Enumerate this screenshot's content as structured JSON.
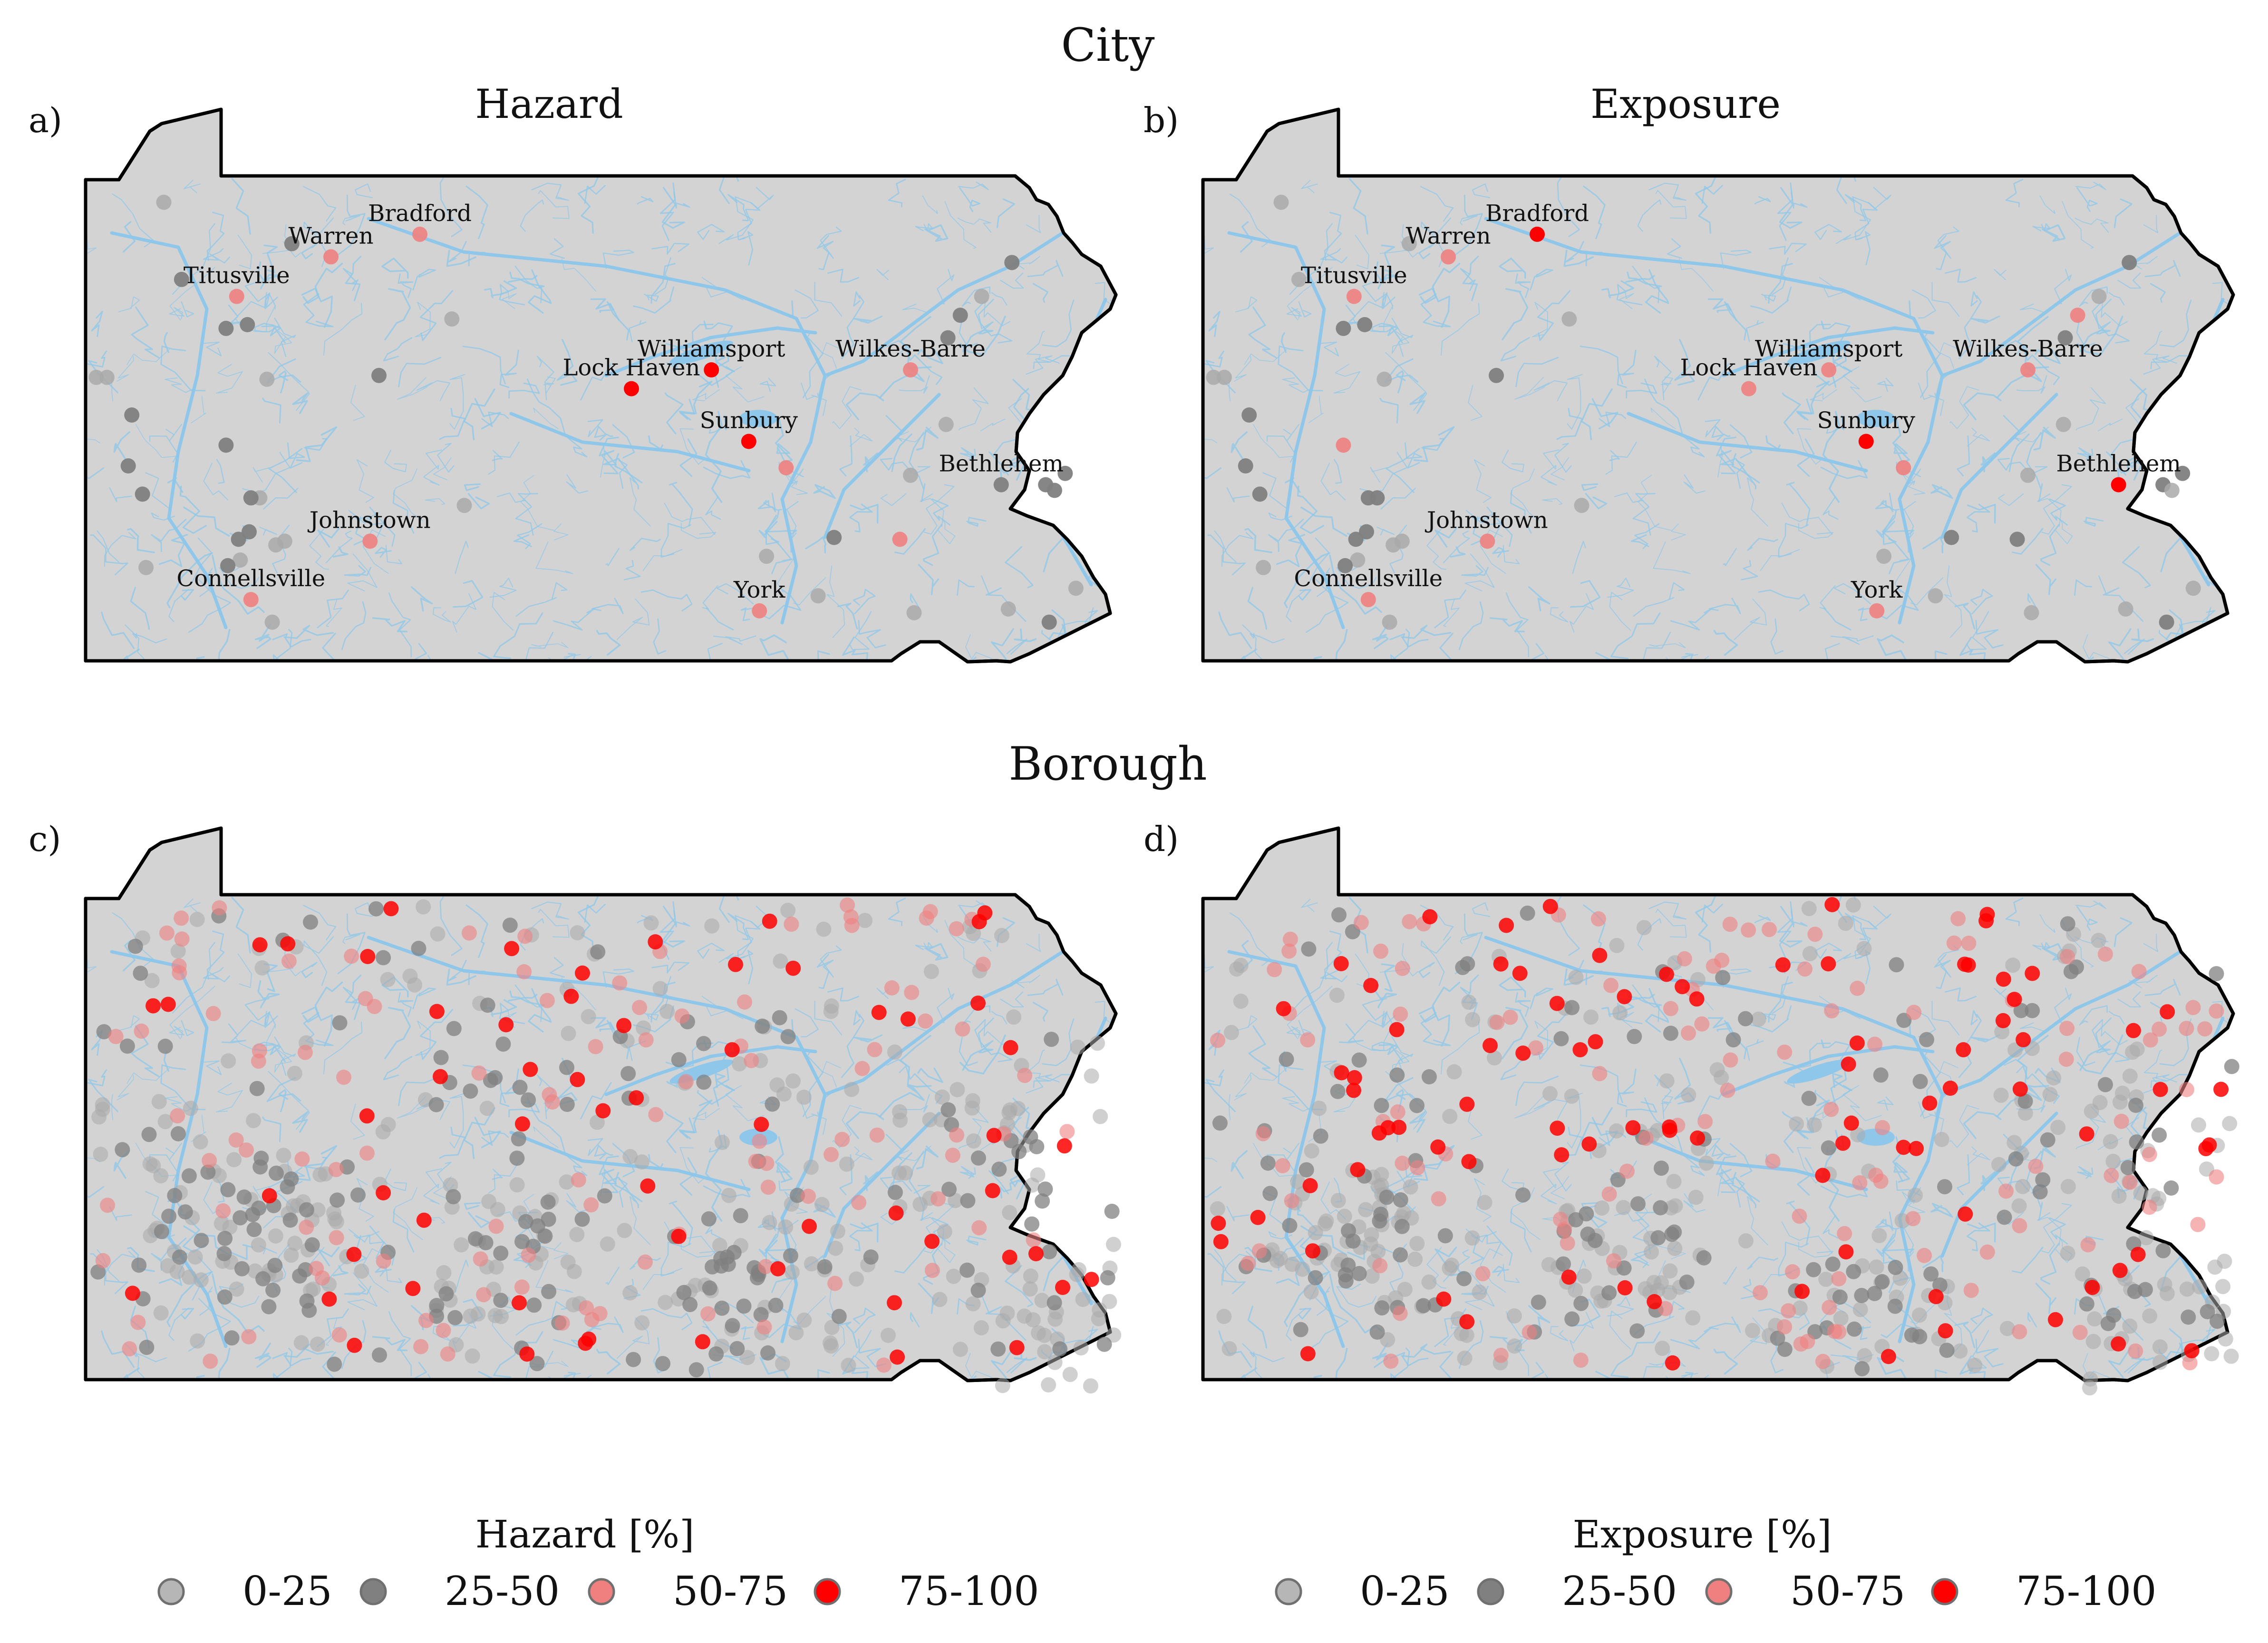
{
  "figure": {
    "rows": [
      {
        "title": "City"
      },
      {
        "title": "Borough"
      }
    ],
    "panels": [
      {
        "letter": "a)",
        "title": "Hazard",
        "metric": "hazard",
        "row": "city"
      },
      {
        "letter": "b)",
        "title": "Exposure",
        "metric": "exposure",
        "row": "city"
      },
      {
        "letter": "c)",
        "title": "",
        "metric": "hazard",
        "row": "borough"
      },
      {
        "letter": "d)",
        "title": "",
        "metric": "exposure",
        "row": "borough"
      }
    ]
  },
  "legends": [
    {
      "title": "Hazard [%]",
      "labels": [
        "0-25",
        "25-50",
        "50-75",
        "75-100"
      ]
    },
    {
      "title": "Exposure [%]",
      "labels": [
        "0-25",
        "25-50",
        "50-75",
        "75-100"
      ]
    }
  ],
  "classes": {
    "colors": [
      "#a9a9a9",
      "#808080",
      "#f08080",
      "#ff0000"
    ],
    "opacity_city": [
      0.85,
      0.95,
      0.9,
      1.0
    ],
    "opacity_borough": [
      0.55,
      0.75,
      0.6,
      0.85
    ]
  },
  "colors": {
    "land": "#d3d3d3",
    "water": "#8ec7ea",
    "boundary": "#000000"
  },
  "chart_data": {
    "type": "scatter",
    "x_units": "degrees longitude",
    "y_units": "degrees latitude",
    "xlim": [
      -80.52,
      -74.69
    ],
    "ylim": [
      39.72,
      42.27
    ],
    "cities": [
      {
        "name": "Bradford",
        "lon": -78.64,
        "lat": 41.96,
        "hazard": 2,
        "exposure": 3
      },
      {
        "name": "Warren",
        "lon": -79.14,
        "lat": 41.84,
        "hazard": 2,
        "exposure": 2
      },
      {
        "name": "Titusville",
        "lon": -79.67,
        "lat": 41.63,
        "hazard": 2,
        "exposure": 2
      },
      {
        "name": "Williamsport",
        "lon": -77.0,
        "lat": 41.24,
        "hazard": 3,
        "exposure": 2
      },
      {
        "name": "Lock Haven",
        "lon": -77.45,
        "lat": 41.14,
        "hazard": 3,
        "exposure": 2
      },
      {
        "name": "Wilkes-Barre",
        "lon": -75.88,
        "lat": 41.24,
        "hazard": 2,
        "exposure": 2
      },
      {
        "name": "Sunbury",
        "lon": -76.79,
        "lat": 40.86,
        "hazard": 3,
        "exposure": 3
      },
      {
        "name": "Bethlehem",
        "lon": -75.37,
        "lat": 40.63,
        "hazard": 1,
        "exposure": 3
      },
      {
        "name": "Johnstown",
        "lon": -78.92,
        "lat": 40.33,
        "hazard": 2,
        "exposure": 2
      },
      {
        "name": "Connellsville",
        "lon": -79.59,
        "lat": 40.02,
        "hazard": 2,
        "exposure": 2
      },
      {
        "name": "York",
        "lon": -76.73,
        "lat": 39.96,
        "hazard": 2,
        "exposure": 2
      }
    ],
    "unlabeled_cities": [
      [
        -80.08,
        42.13,
        0,
        0
      ],
      [
        -79.36,
        41.91,
        1,
        0
      ],
      [
        -79.98,
        41.72,
        1,
        0
      ],
      [
        -79.73,
        41.46,
        1,
        1
      ],
      [
        -79.61,
        41.48,
        1,
        1
      ],
      [
        -78.46,
        41.51,
        0,
        0
      ],
      [
        -80.46,
        41.2,
        0,
        0
      ],
      [
        -80.4,
        41.2,
        0,
        0
      ],
      [
        -79.5,
        41.19,
        0,
        0
      ],
      [
        -78.87,
        41.21,
        1,
        1
      ],
      [
        -80.26,
        41.0,
        1,
        1
      ],
      [
        -79.73,
        40.84,
        1,
        2
      ],
      [
        -80.28,
        40.73,
        1,
        1
      ],
      [
        -80.2,
        40.58,
        1,
        1
      ],
      [
        -79.54,
        40.56,
        0,
        1
      ],
      [
        -79.59,
        40.56,
        1,
        1
      ],
      [
        -79.6,
        40.38,
        1,
        1
      ],
      [
        -79.66,
        40.34,
        1,
        1
      ],
      [
        -79.4,
        40.33,
        0,
        0
      ],
      [
        -79.45,
        40.31,
        0,
        0
      ],
      [
        -79.65,
        40.23,
        0,
        0
      ],
      [
        -79.72,
        40.2,
        1,
        1
      ],
      [
        -80.18,
        40.19,
        0,
        0
      ],
      [
        -79.47,
        39.9,
        0,
        0
      ],
      [
        -78.39,
        40.52,
        0,
        0
      ],
      [
        -75.67,
        41.41,
        1,
        1
      ],
      [
        -75.6,
        41.53,
        1,
        2
      ],
      [
        -75.48,
        41.63,
        0,
        0
      ],
      [
        -75.31,
        41.81,
        1,
        1
      ],
      [
        -75.68,
        40.95,
        0,
        0
      ],
      [
        -75.88,
        40.68,
        0,
        0
      ],
      [
        -75.01,
        40.69,
        1,
        1
      ],
      [
        -75.12,
        40.63,
        1,
        1
      ],
      [
        -75.07,
        40.6,
        1,
        0
      ],
      [
        -75.94,
        40.34,
        2,
        1
      ],
      [
        -76.31,
        40.35,
        1,
        1
      ],
      [
        -76.69,
        40.25,
        0,
        0
      ],
      [
        -76.58,
        40.72,
        2,
        2
      ],
      [
        -76.4,
        40.04,
        0,
        0
      ],
      [
        -75.86,
        39.95,
        0,
        0
      ],
      [
        -75.33,
        39.97,
        0,
        0
      ],
      [
        -74.95,
        40.08,
        0,
        0
      ],
      [
        -75.1,
        39.9,
        1,
        1
      ]
    ],
    "borough_hazard_counts": {
      "0-25": 260,
      "25-50": 170,
      "50-75": 110,
      "75-100": 60
    },
    "borough_exposure_counts": {
      "0-25": 250,
      "25-50": 140,
      "50-75": 120,
      "75-100": 90
    }
  }
}
